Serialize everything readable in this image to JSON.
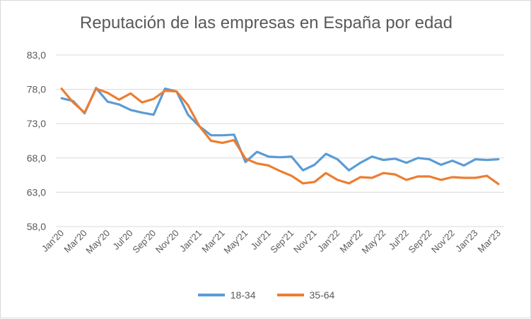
{
  "chart_data": {
    "type": "line",
    "title": "Reputación de las empresas en España por edad",
    "xlabel": "",
    "ylabel": "",
    "ylim": [
      58.0,
      83.0
    ],
    "yticks": [
      "58,0",
      "63,0",
      "68,0",
      "73,0",
      "78,0",
      "83,0"
    ],
    "ytick_values": [
      58,
      63,
      68,
      73,
      78,
      83
    ],
    "x": [
      "Jan'20",
      "Feb'20",
      "Mar'20",
      "Apr'20",
      "May'20",
      "Jun'20",
      "Jul'20",
      "Aug'20",
      "Sep'20",
      "Oct'20",
      "Nov'20",
      "Dec'20",
      "Jan'21",
      "Feb'21",
      "Mar'21",
      "Apr'21",
      "May'21",
      "Jun'21",
      "Jul'21",
      "Aug'21",
      "Sep'21",
      "Oct'21",
      "Nov'21",
      "Dec'21",
      "Jan'22",
      "Feb'22",
      "Mar'22",
      "Apr'22",
      "May'22",
      "Jun'22",
      "Jul'22",
      "Aug'22",
      "Sep'22",
      "Oct'22",
      "Nov'22",
      "Dec'22",
      "Jan'23",
      "Feb'23",
      "Mar'23"
    ],
    "xtick_labels": [
      "Jan'20",
      "Mar'20",
      "May'20",
      "Jul'20",
      "Sep'20",
      "Nov'20",
      "Jan'21",
      "Mar'21",
      "May'21",
      "Jul'21",
      "Sep'21",
      "Nov'21",
      "Jan'22",
      "Mar'22",
      "May'22",
      "Jul'22",
      "Sep'22",
      "Nov'22",
      "Jan'23",
      "Mar'23"
    ],
    "grid": true,
    "legend_position": "bottom",
    "series": [
      {
        "name": "18-34",
        "color": "#5b9bd5",
        "values": [
          76.7,
          76.3,
          74.5,
          78.2,
          76.2,
          75.8,
          75.0,
          74.6,
          74.3,
          78.1,
          77.7,
          74.3,
          72.6,
          71.3,
          71.3,
          71.4,
          67.4,
          68.9,
          68.2,
          68.1,
          68.2,
          66.2,
          67.0,
          68.6,
          67.8,
          66.2,
          67.3,
          68.2,
          67.7,
          67.9,
          67.3,
          68.0,
          67.8,
          67.0,
          67.6,
          66.9,
          67.8,
          67.7,
          67.8
        ]
      },
      {
        "name": "35-64",
        "color": "#ed7d31",
        "values": [
          78.1,
          76.1,
          74.6,
          78.1,
          77.5,
          76.5,
          77.4,
          76.1,
          76.6,
          77.8,
          77.7,
          75.7,
          72.6,
          70.5,
          70.2,
          70.6,
          67.9,
          67.2,
          66.9,
          66.1,
          65.4,
          64.3,
          64.5,
          65.8,
          64.8,
          64.3,
          65.2,
          65.1,
          65.8,
          65.6,
          64.8,
          65.3,
          65.3,
          64.8,
          65.2,
          65.1,
          65.1,
          65.4,
          64.2
        ]
      }
    ]
  }
}
